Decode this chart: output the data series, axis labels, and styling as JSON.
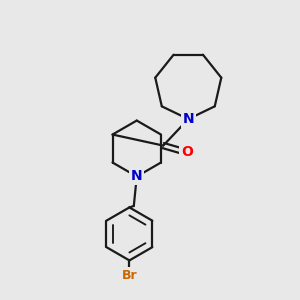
{
  "background_color": "#e8e8e8",
  "bond_color": "#1a1a1a",
  "bond_width": 1.6,
  "atom_colors": {
    "N": "#0000cc",
    "O": "#ff0000",
    "Br": "#cc6600",
    "C": "#1a1a1a"
  },
  "font_size_N": 10,
  "font_size_O": 10,
  "font_size_Br": 9,
  "fig_bg": "#e8e8e8",
  "xlim": [
    0,
    10
  ],
  "ylim": [
    0,
    10
  ]
}
